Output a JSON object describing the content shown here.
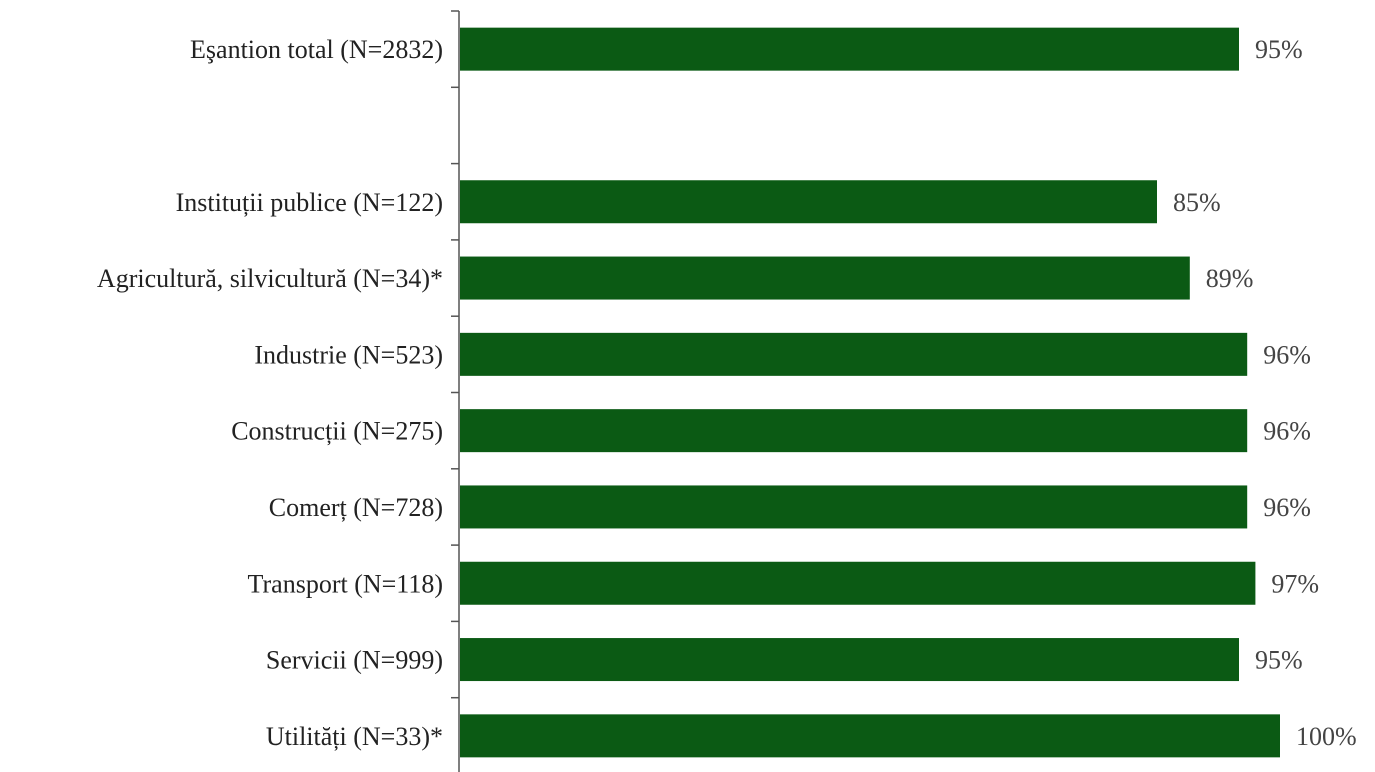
{
  "chart_data": {
    "type": "bar",
    "orientation": "horizontal",
    "categories": [
      "Eşantion total (N=2832)",
      "",
      "Instituții publice (N=122)",
      "Agricultură, silvicultură (N=34)*",
      "Industrie (N=523)",
      "Construcții (N=275)",
      "Comerț (N=728)",
      "Transport (N=118)",
      "Servicii (N=999)",
      "Utilități (N=33)*"
    ],
    "values": [
      95,
      null,
      85,
      89,
      96,
      96,
      96,
      97,
      95,
      100
    ],
    "value_labels": [
      "95%",
      "",
      "85%",
      "89%",
      "96%",
      "96%",
      "96%",
      "97%",
      "95%",
      "100%"
    ],
    "xlim": [
      0,
      100
    ],
    "grid": false,
    "legend": "none",
    "bar_color": "#0b5a14"
  }
}
